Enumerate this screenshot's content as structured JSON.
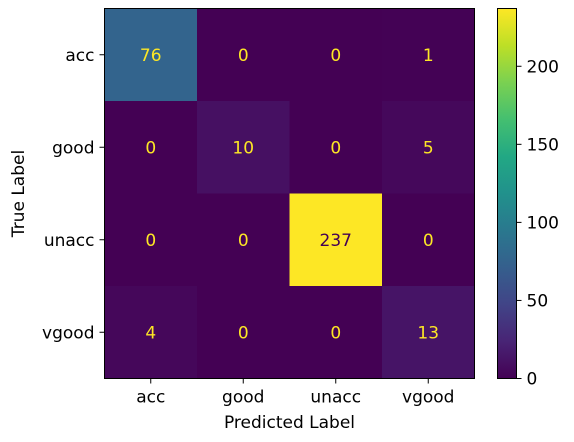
{
  "chart_data": {
    "type": "heatmap",
    "xlabel": "Predicted Label",
    "ylabel": "True Label",
    "x_categories": [
      "acc",
      "good",
      "unacc",
      "vgood"
    ],
    "y_categories": [
      "acc",
      "good",
      "unacc",
      "vgood"
    ],
    "values": [
      [
        76,
        0,
        0,
        1
      ],
      [
        0,
        10,
        0,
        5
      ],
      [
        0,
        0,
        237,
        0
      ],
      [
        4,
        0,
        0,
        13
      ]
    ],
    "colorbar": {
      "min": 0,
      "max": 237,
      "ticks": [
        0,
        50,
        100,
        150,
        200
      ]
    },
    "colormap": "viridis",
    "colors": {
      "low_text": "#fde725",
      "high_text": "#440154"
    }
  }
}
